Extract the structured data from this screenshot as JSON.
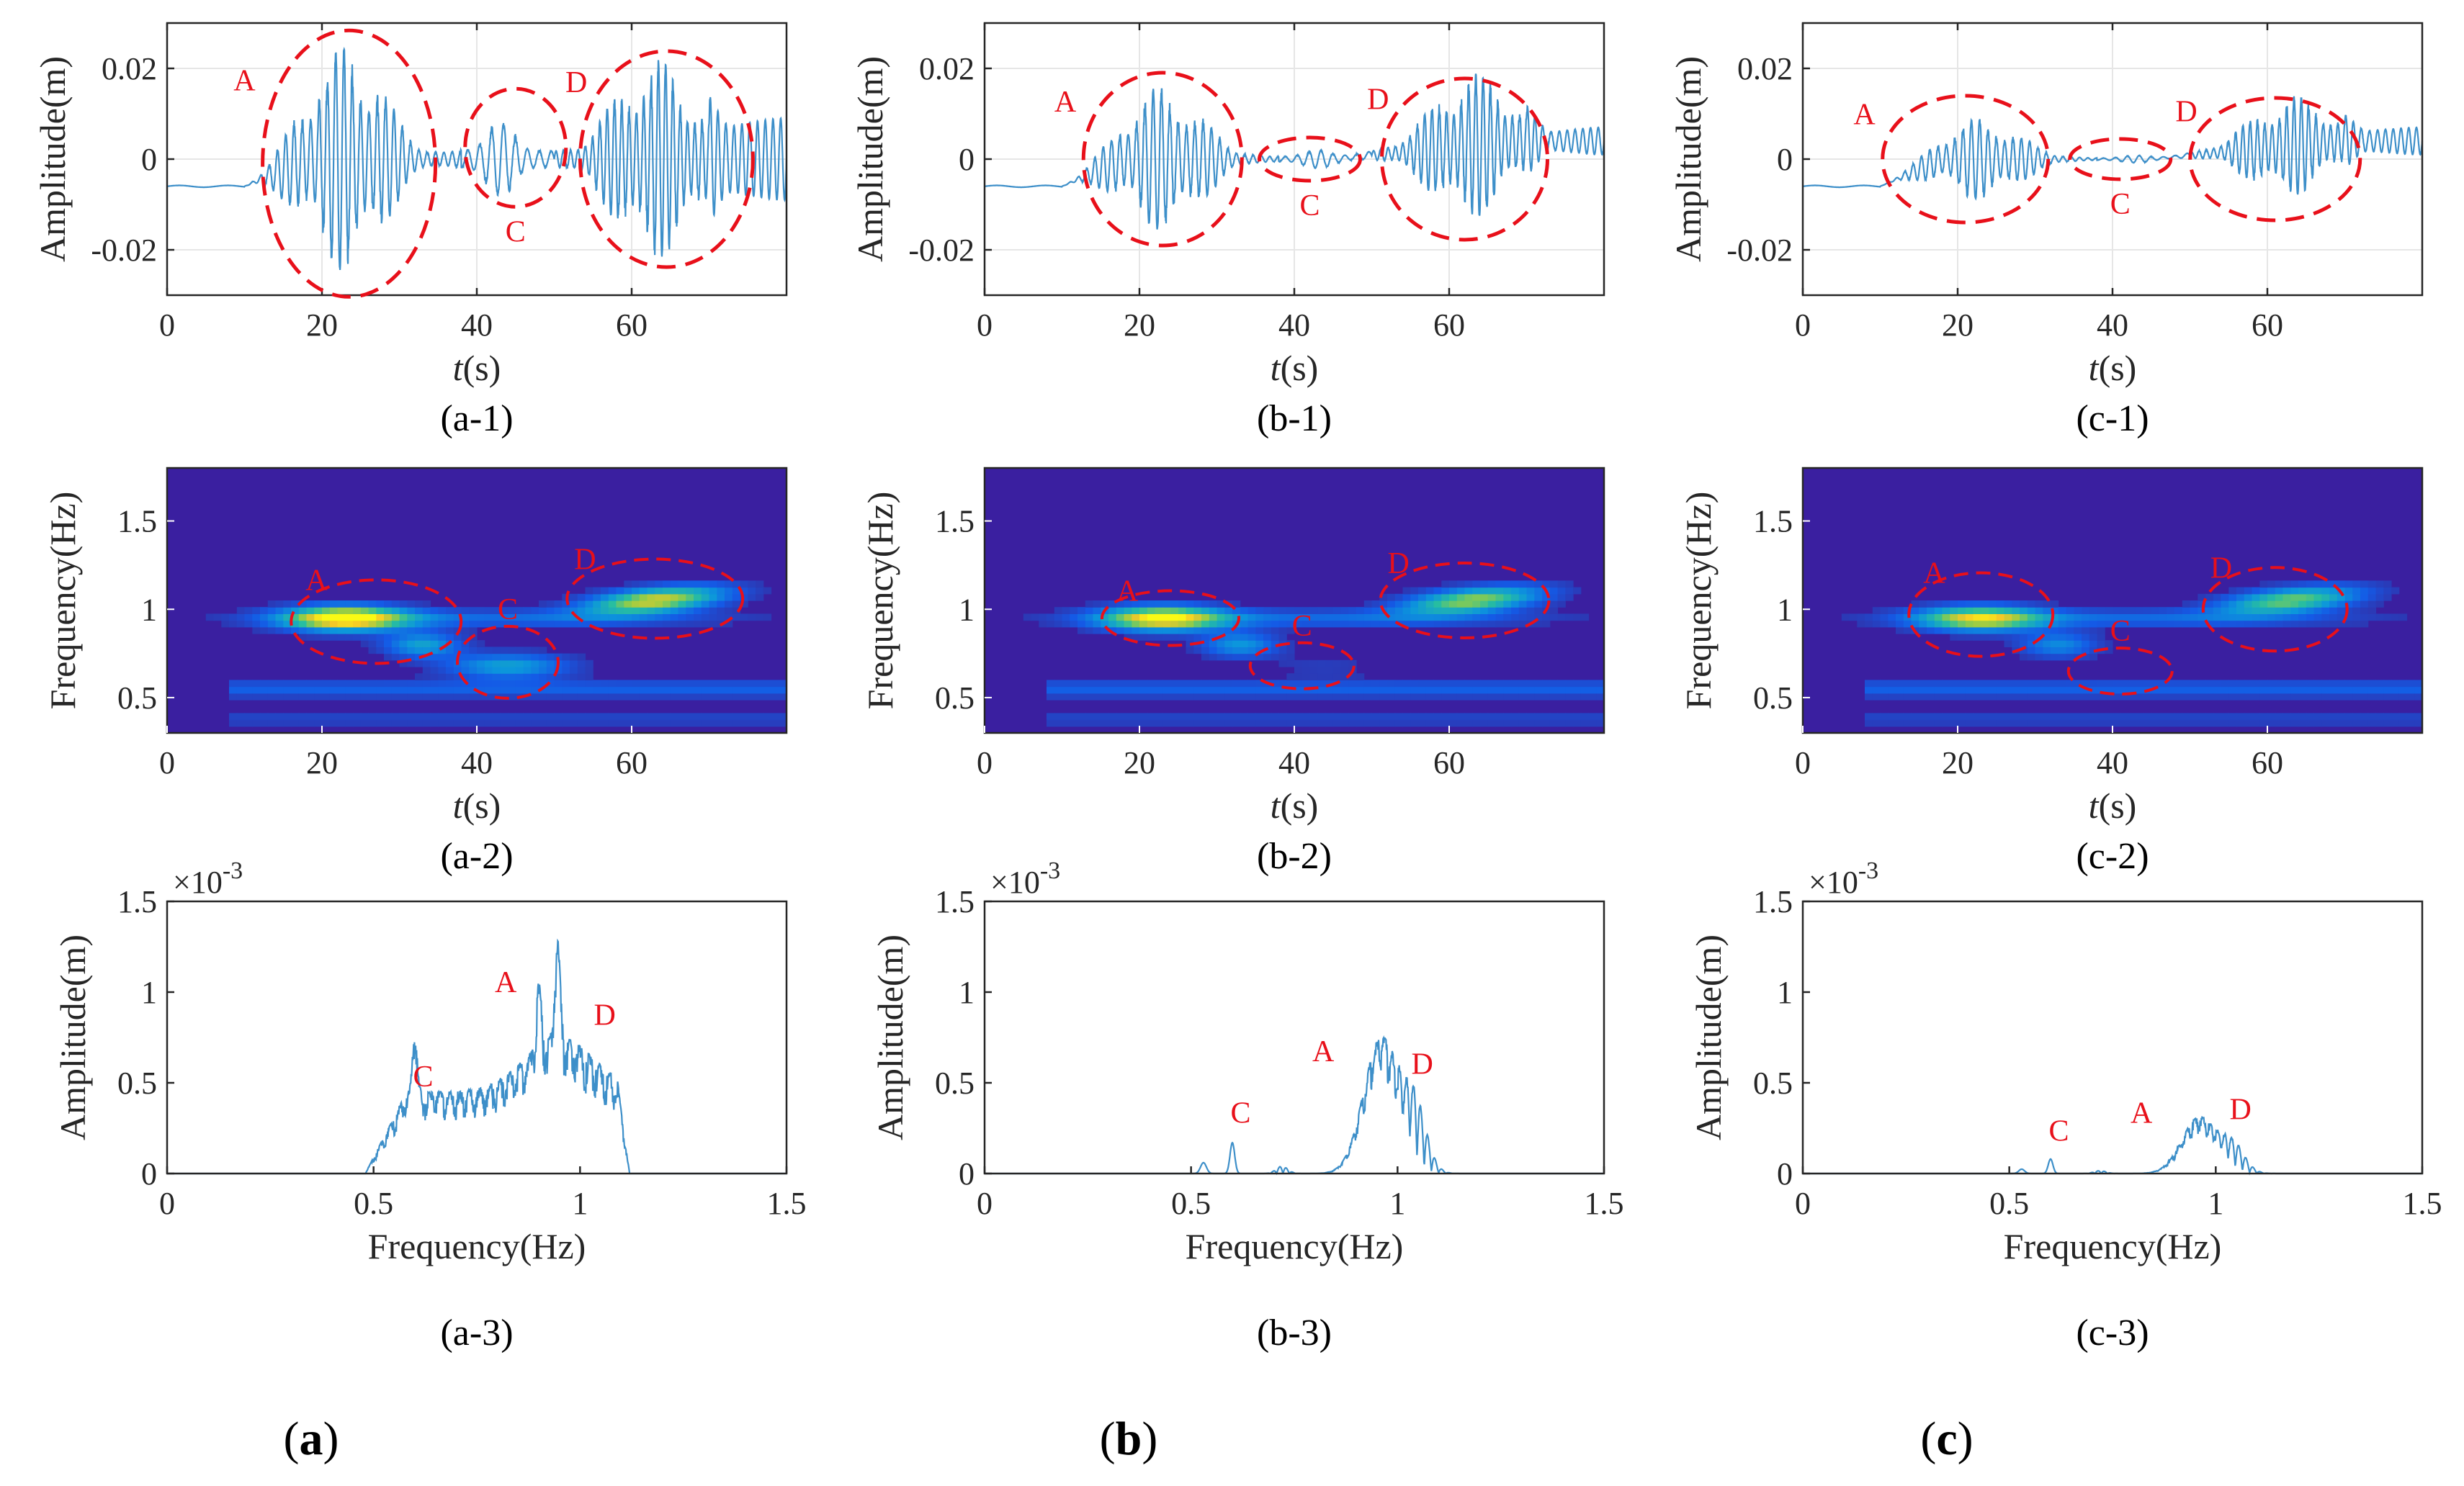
{
  "colors": {
    "signal": "#3d8fc9",
    "annotation": "#e8101a",
    "spec_bg": "#3a1fa0",
    "axis": "#262626"
  },
  "columns": [
    {
      "panel_letter": "a",
      "time_sub": "(a-1)",
      "spec_sub": "(a-2)",
      "fft_sub": "(a-3)",
      "time_amp": {
        "A": 0.025,
        "C": 0.008,
        "D": 0.022
      },
      "spec_int": {
        "A": 1.0,
        "C": 0.45,
        "D": 0.85
      },
      "fft_amp": {
        "A": 1.22,
        "C": 0.7,
        "D": 0.78
      }
    },
    {
      "panel_letter": "b",
      "time_sub": "(b-1)",
      "spec_sub": "(b-2)",
      "fft_sub": "(b-3)",
      "time_amp": {
        "A": 0.016,
        "C": 0.002,
        "D": 0.016
      },
      "spec_int": {
        "A": 0.9,
        "C": 0.08,
        "D": 0.75
      },
      "fft_amp": {
        "A": 0.75,
        "C": 0.17,
        "D": 0.55
      }
    },
    {
      "panel_letter": "c",
      "time_sub": "(c-1)",
      "spec_sub": "(c-2)",
      "fft_sub": "(c-3)",
      "time_amp": {
        "A": 0.009,
        "C": 0.0008,
        "D": 0.011
      },
      "spec_int": {
        "A": 0.8,
        "C": 0.04,
        "D": 0.7
      },
      "fft_amp": {
        "A": 0.31,
        "C": 0.08,
        "D": 0.2
      }
    }
  ],
  "chart_data": [
    {
      "type": "line",
      "title": "",
      "xlabel_italic": "t",
      "xlabel": "(s)",
      "ylabel": "Amplitude(m)",
      "xlim": [
        0,
        80
      ],
      "ylim": [
        -0.03,
        0.03
      ],
      "xticks": [
        0,
        20,
        40,
        60
      ],
      "yticks": [
        0.02,
        0,
        -0.02
      ],
      "ytick_labels": [
        "0.02",
        "0",
        "-0.02"
      ],
      "grid": true,
      "regions": [
        {
          "label": "A",
          "t": [
            10,
            36
          ]
        },
        {
          "label": "C",
          "t": [
            36,
            50
          ]
        },
        {
          "label": "D",
          "t": [
            50,
            78
          ]
        }
      ],
      "annotations": [
        "A",
        "C",
        "D"
      ]
    },
    {
      "type": "heatmap",
      "title": "",
      "xlabel_italic": "t",
      "xlabel": "(s)",
      "ylabel": "Frequency(Hz)",
      "xlim": [
        0,
        80
      ],
      "ylim": [
        0.3,
        1.8
      ],
      "xticks": [
        0,
        20,
        40,
        60
      ],
      "yticks": [
        0.5,
        1,
        1.5
      ],
      "ytick_labels": [
        "0.5",
        "1",
        "1.5"
      ],
      "regions": [
        {
          "label": "A",
          "t": 24,
          "f": 0.93
        },
        {
          "label": "C",
          "t": 43,
          "f": 0.68
        },
        {
          "label": "D",
          "t": 62,
          "f": 1.06
        }
      ],
      "annotations": [
        "A",
        "C",
        "D"
      ]
    },
    {
      "type": "line",
      "title": "",
      "xlabel": "Frequency(Hz)",
      "ylabel": "Amplitude(m)",
      "y_multiplier": "×10",
      "y_exponent": "-3",
      "xlim": [
        0,
        1.5
      ],
      "ylim": [
        0,
        1.5
      ],
      "xticks": [
        0,
        0.5,
        1,
        1.5
      ],
      "xtick_labels": [
        "0",
        "0.5",
        "1",
        "1.5"
      ],
      "yticks": [
        0,
        0.5,
        1,
        1.5
      ],
      "ytick_labels": [
        "0",
        "0.5",
        "1",
        "1.5"
      ],
      "grid": false,
      "peaks": [
        {
          "label": "C",
          "f": 0.6
        },
        {
          "label": "A",
          "f": 0.95
        },
        {
          "label": "D",
          "f": 1.05
        }
      ],
      "annotations": [
        "A",
        "C",
        "D"
      ]
    }
  ]
}
